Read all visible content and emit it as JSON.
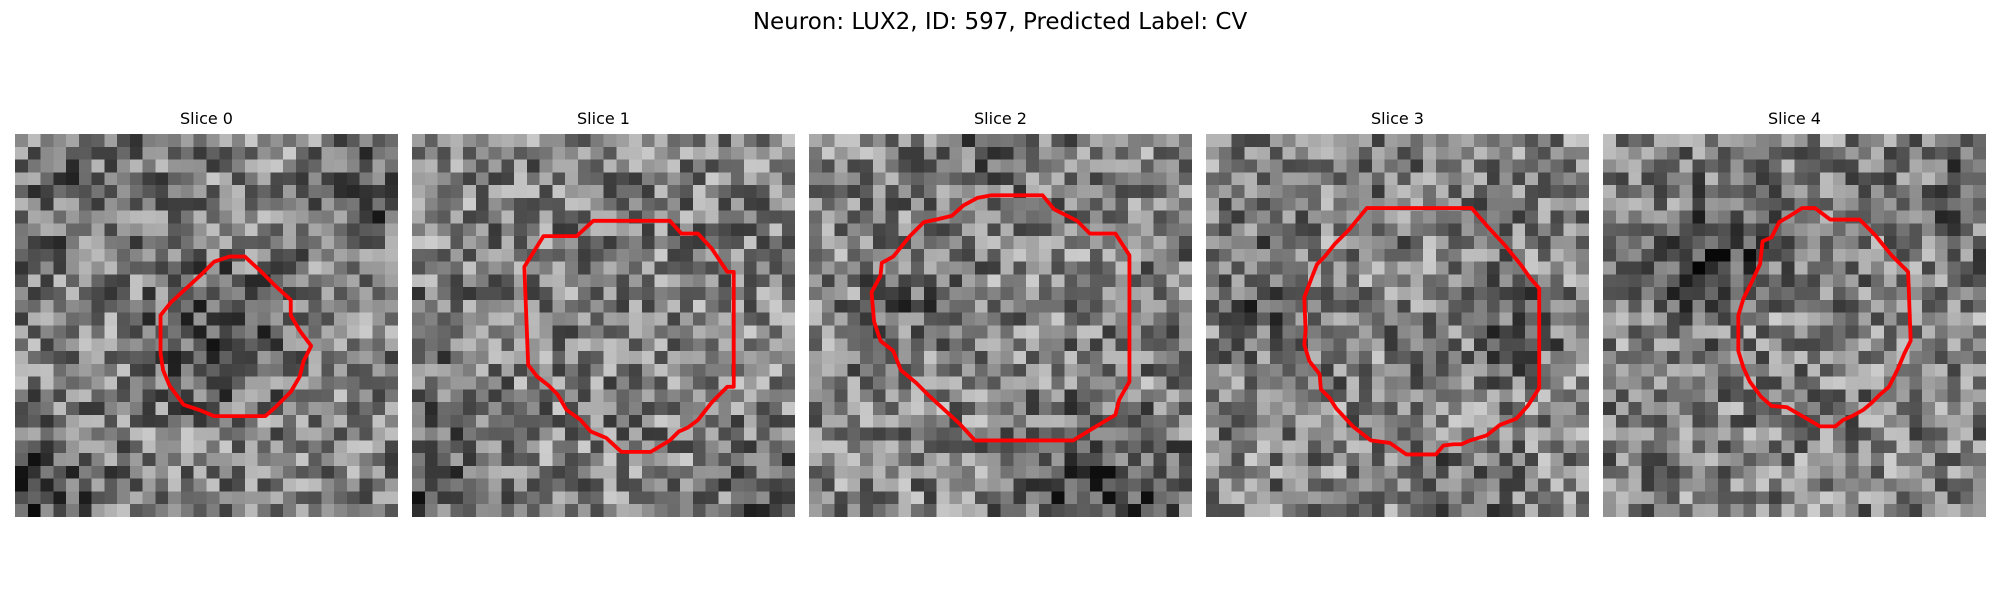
{
  "figure": {
    "title": "Neuron: LUX2, ID: 597, Predicted Label: CV"
  },
  "contour_color": "#ff0000",
  "colormap": "gray",
  "panels": [
    {
      "title": "Slice 0"
    },
    {
      "title": "Slice 1"
    },
    {
      "title": "Slice 2"
    },
    {
      "title": "Slice 3"
    },
    {
      "title": "Slice 4"
    }
  ]
}
